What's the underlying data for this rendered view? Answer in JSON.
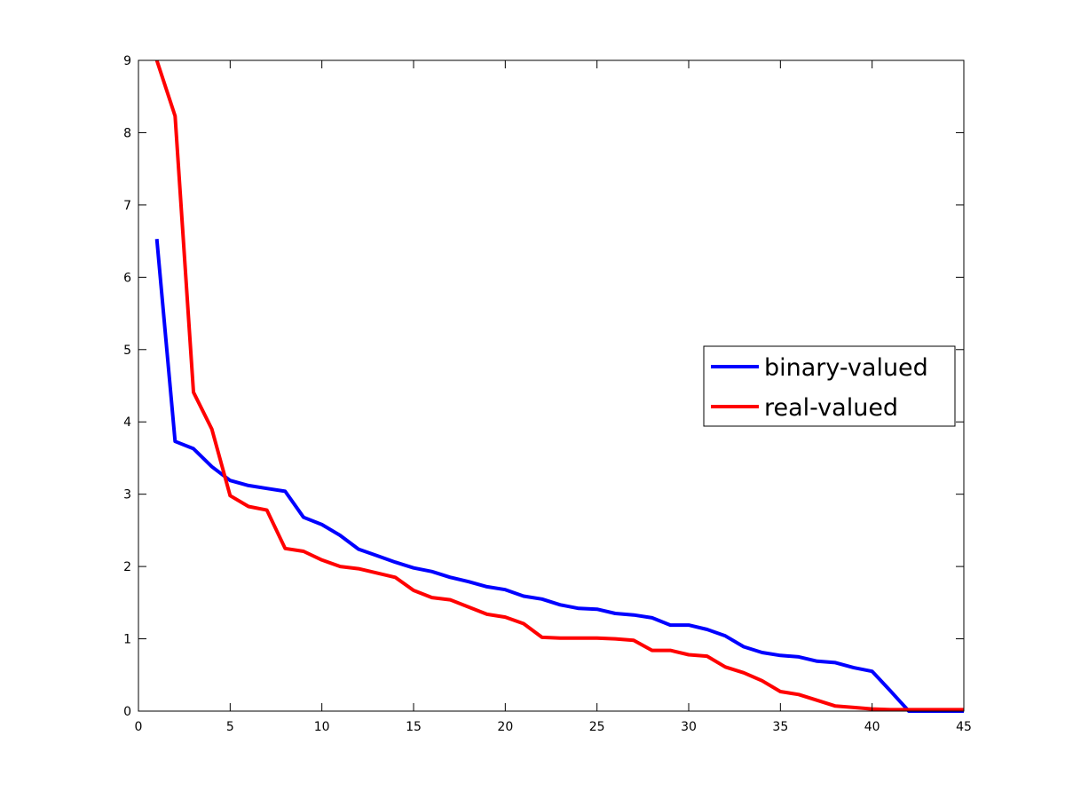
{
  "chart_data": {
    "type": "line",
    "title": "",
    "xlabel": "",
    "ylabel": "",
    "xlim": [
      0,
      45
    ],
    "ylim": [
      0,
      9
    ],
    "xticks": [
      0,
      5,
      10,
      15,
      20,
      25,
      30,
      35,
      40,
      45
    ],
    "yticks": [
      0,
      1,
      2,
      3,
      4,
      5,
      6,
      7,
      8,
      9
    ],
    "xtick_labels": [
      "0",
      "5",
      "10",
      "15",
      "20",
      "25",
      "30",
      "35",
      "40",
      "45"
    ],
    "ytick_labels": [
      "0",
      "1",
      "2",
      "3",
      "4",
      "5",
      "6",
      "7",
      "8",
      "9"
    ],
    "grid": false,
    "legend_position": "right",
    "series": [
      {
        "name": "binary-valued",
        "color": "#0000ff",
        "x": [
          1,
          2,
          3,
          4,
          5,
          6,
          7,
          8,
          9,
          10,
          11,
          12,
          13,
          14,
          15,
          16,
          17,
          18,
          19,
          20,
          21,
          22,
          23,
          24,
          25,
          26,
          27,
          28,
          29,
          30,
          31,
          32,
          33,
          34,
          35,
          36,
          37,
          38,
          39,
          40,
          41,
          42,
          43,
          44,
          45
        ],
        "y": [
          6.53,
          3.73,
          3.63,
          3.38,
          3.19,
          3.12,
          3.08,
          3.04,
          2.68,
          2.58,
          2.43,
          2.24,
          2.15,
          2.06,
          1.98,
          1.93,
          1.85,
          1.79,
          1.72,
          1.68,
          1.59,
          1.55,
          1.47,
          1.42,
          1.41,
          1.35,
          1.33,
          1.29,
          1.19,
          1.19,
          1.13,
          1.04,
          0.89,
          0.81,
          0.77,
          0.75,
          0.69,
          0.67,
          0.6,
          0.55,
          0.28,
          0.0,
          0.0,
          0.0,
          0.0
        ]
      },
      {
        "name": "real-valued",
        "color": "#ff0000",
        "x": [
          1,
          2,
          3,
          4,
          5,
          6,
          7,
          8,
          9,
          10,
          11,
          12,
          13,
          14,
          15,
          16,
          17,
          18,
          19,
          20,
          21,
          22,
          23,
          24,
          25,
          26,
          27,
          28,
          29,
          30,
          31,
          32,
          33,
          34,
          35,
          36,
          37,
          38,
          39,
          40,
          41,
          42,
          43,
          44,
          45
        ],
        "y": [
          9.0,
          8.23,
          4.41,
          3.9,
          2.98,
          2.83,
          2.78,
          2.25,
          2.21,
          2.09,
          2.0,
          1.97,
          1.91,
          1.85,
          1.67,
          1.57,
          1.54,
          1.44,
          1.34,
          1.3,
          1.21,
          1.02,
          1.01,
          1.01,
          1.01,
          1.0,
          0.98,
          0.84,
          0.84,
          0.78,
          0.76,
          0.61,
          0.53,
          0.42,
          0.27,
          0.23,
          0.15,
          0.07,
          0.05,
          0.03,
          0.02,
          0.02,
          0.02,
          0.02,
          0.02
        ]
      }
    ]
  }
}
